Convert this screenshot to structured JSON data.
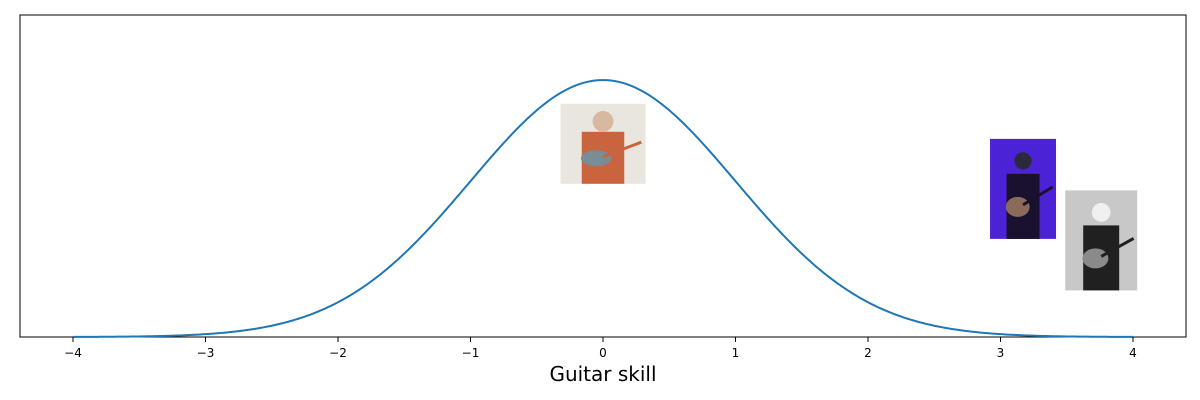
{
  "chart_data": {
    "type": "line",
    "xlabel": "Guitar skill",
    "ylabel": "",
    "xlim": [
      -4.4,
      4.4
    ],
    "ylim": [
      0,
      0.5
    ],
    "xticks": [
      -4,
      -3,
      -2,
      -1,
      0,
      1,
      2,
      3,
      4
    ],
    "xtick_labels": [
      "−4",
      "−3",
      "−2",
      "−1",
      "0",
      "1",
      "2",
      "3",
      "4"
    ],
    "yticks_visible": false,
    "grid": false,
    "series": [
      {
        "curve": "standard normal density",
        "x_range": [
          -4,
          4
        ],
        "mean": 0,
        "sd": 1,
        "color": "#1f77b4"
      }
    ],
    "annotations": [
      {
        "kind": "photo",
        "depicts": "man in plaid shirt playing acoustic-electric guitar",
        "x": 0.0,
        "y": 0.3,
        "palette": [
          "#e9e6df",
          "#c9643f",
          "#7a8c95",
          "#d8b9a0"
        ]
      },
      {
        "kind": "photo",
        "depicts": "guitarist on stage under purple lights",
        "x": 3.17,
        "y": 0.23,
        "palette": [
          "#4b22d6",
          "#1a1030",
          "#8c6a5a",
          "#2a2a3a"
        ]
      },
      {
        "kind": "photo",
        "depicts": "black-and-white photo of guitarist with curly hair",
        "x": 3.76,
        "y": 0.15,
        "palette": [
          "#c8c8c8",
          "#202020",
          "#8a8a8a",
          "#f0f0f0"
        ]
      }
    ]
  }
}
